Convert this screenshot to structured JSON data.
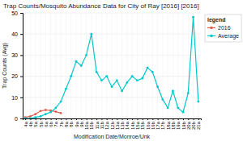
{
  "chart_data": {
    "type": "line",
    "title": "Trap Counts/Mosquito Abundance Data for City of Ray [2016] [2016]",
    "x_label": "Modification Date/Monroe/Unk",
    "y_label": "Trap Counts (Avg)",
    "categories": [
      "4a",
      "4b",
      "5a",
      "5b",
      "6a",
      "6b",
      "7a",
      "7b",
      "8a",
      "8b",
      "9a",
      "9b",
      "10a",
      "10b",
      "11a",
      "11b",
      "12a",
      "12b",
      "13a",
      "13b",
      "14a",
      "14b",
      "15a",
      "15b",
      "16a",
      "16b",
      "17a",
      "17b",
      "18a",
      "18b",
      "19a",
      "19b",
      "20a",
      "20b",
      "21a"
    ],
    "series": [
      {
        "name": "2016",
        "color": "#e06050",
        "values": [
          0.5,
          1.0,
          2.0,
          3.5,
          4.0,
          3.8,
          3.2,
          2.5,
          null,
          null,
          null,
          null,
          null,
          null,
          null,
          null,
          null,
          null,
          null,
          null,
          null,
          null,
          null,
          null,
          null,
          null,
          null,
          null,
          null,
          null,
          null,
          null,
          null,
          null,
          null
        ]
      },
      {
        "name": "Average",
        "color": "#00c8cc",
        "values": [
          0,
          0,
          0.5,
          1,
          2,
          3,
          5,
          8,
          14,
          20,
          27,
          25,
          30,
          40,
          22,
          18,
          20,
          15,
          18,
          13,
          17,
          20,
          18,
          19,
          24,
          22,
          15,
          9,
          5,
          13,
          5,
          3,
          12,
          48,
          8
        ]
      }
    ],
    "ylim": [
      0,
      50
    ],
    "yticks": [
      0,
      10,
      20,
      30,
      40,
      50
    ],
    "grid": true,
    "marker": "circle",
    "legend": "right",
    "legend_title": "legend"
  }
}
